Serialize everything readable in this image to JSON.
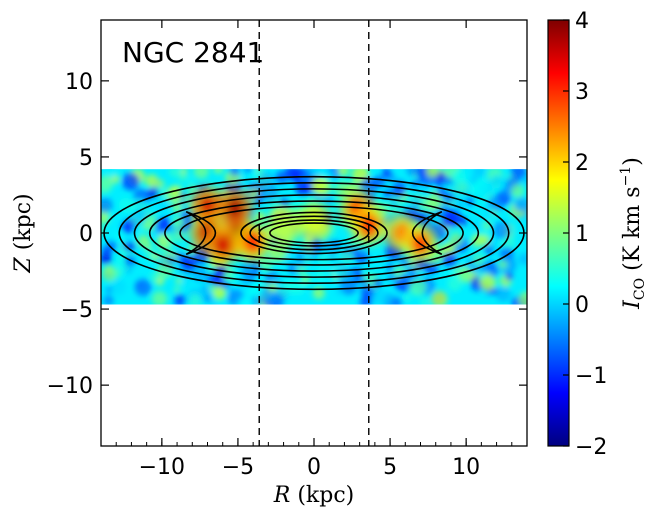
{
  "chart_data": {
    "type": "heatmap",
    "title": "NGC 2841",
    "xlabel_var": "R",
    "xlabel_unit": "(kpc)",
    "ylabel_var": "Z",
    "ylabel_unit": "(kpc)",
    "xlim": [
      -14,
      14
    ],
    "ylim": [
      -14,
      14
    ],
    "xticks": [
      -10,
      -5,
      0,
      5,
      10
    ],
    "yticks": [
      -10,
      -5,
      0,
      5,
      10
    ],
    "map_extent": {
      "x": [
        -14,
        14
      ],
      "y": [
        -4.7,
        4.2
      ]
    },
    "vertical_lines_R": [
      -3.6,
      3.6
    ],
    "contours": {
      "center": [
        0,
        0
      ],
      "outer_semi_axes_kpc": [
        [
          13.8,
          3.7
        ],
        [
          12.8,
          3.3
        ],
        [
          11.8,
          2.9
        ],
        [
          10.8,
          2.5
        ],
        [
          9.8,
          2.1
        ],
        [
          8.8,
          1.75
        ]
      ],
      "inner_semi_axes_kpc": [
        [
          4.8,
          1.35
        ],
        [
          4.2,
          1.1
        ],
        [
          3.6,
          0.85
        ],
        [
          2.9,
          0.65
        ]
      ],
      "loop_centers_R": [
        -6.8,
        6.8
      ]
    },
    "co_hotspots": [
      {
        "R": -7.0,
        "Z": 1.8,
        "level": 3.5
      },
      {
        "R": -7.0,
        "Z": 0.0,
        "level": 3.6
      },
      {
        "R": -5.2,
        "Z": 1.6,
        "level": 3.8
      },
      {
        "R": -5.0,
        "Z": -0.2,
        "level": 4.0
      },
      {
        "R": -6.0,
        "Z": -0.8,
        "level": 3.5
      },
      {
        "R": -4.0,
        "Z": -0.6,
        "level": 3.2
      },
      {
        "R": 2.8,
        "Z": 1.6,
        "level": 3.0
      },
      {
        "R": 3.6,
        "Z": 0.5,
        "level": 3.2
      },
      {
        "R": 5.8,
        "Z": 0.0,
        "level": 2.5
      },
      {
        "R": 7.0,
        "Z": -0.7,
        "level": 3.0
      },
      {
        "R": 0.0,
        "Z": 0.8,
        "level": 1.5
      },
      {
        "R": -2.0,
        "Z": 0.5,
        "level": 1.3
      }
    ],
    "colorbar": {
      "label_main": "I",
      "label_sub": "CO",
      "label_units": "(K km s",
      "label_exp": "−1",
      "label_close": ")",
      "range": [
        -2,
        4
      ],
      "ticks": [
        -2,
        -1,
        0,
        1,
        2,
        3,
        4
      ],
      "cmap": "jet",
      "stops": [
        "#00007f",
        "#0000ff",
        "#007fff",
        "#00ffff",
        "#7fff7f",
        "#ffff00",
        "#ff7f00",
        "#ff0000",
        "#7f0000"
      ]
    }
  }
}
